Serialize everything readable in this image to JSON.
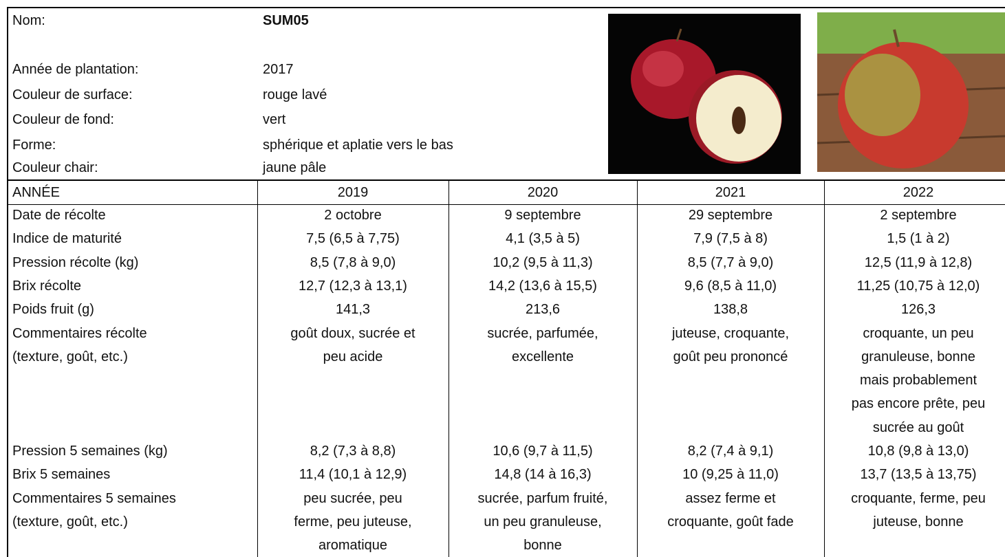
{
  "header": {
    "fields": [
      {
        "label": "Nom:",
        "value": "SUM05"
      },
      {
        "label": "Année de plantation:",
        "value": "2017"
      },
      {
        "label": "Couleur de surface:",
        "value": "rouge lavé"
      },
      {
        "label": "Couleur de fond:",
        "value": "vert"
      },
      {
        "label": "Forme:",
        "value": "sphérique et aplatie vers le bas"
      },
      {
        "label": "Couleur chair:",
        "value": "jaune pâle"
      }
    ]
  },
  "table": {
    "columns": [
      "ANNÉE",
      "2019",
      "2020",
      "2021",
      "2022"
    ],
    "rows": [
      {
        "label": [
          "Date de récolte"
        ],
        "cells": [
          [
            "2 octobre"
          ],
          [
            "9 septembre"
          ],
          [
            "29 septembre"
          ],
          [
            "2 septembre"
          ]
        ]
      },
      {
        "label": [
          "Indice de maturité"
        ],
        "cells": [
          [
            "7,5 (6,5 à 7,75)"
          ],
          [
            "4,1 (3,5 à 5)"
          ],
          [
            "7,9 (7,5 à 8)"
          ],
          [
            "1,5 (1 à 2)"
          ]
        ]
      },
      {
        "label": [
          "Pression récolte (kg)"
        ],
        "cells": [
          [
            "8,5 (7,8 à 9,0)"
          ],
          [
            "10,2 (9,5 à 11,3)"
          ],
          [
            "8,5 (7,7 à 9,0)"
          ],
          [
            "12,5 (11,9 à 12,8)"
          ]
        ]
      },
      {
        "label": [
          "Brix récolte"
        ],
        "cells": [
          [
            "12,7 (12,3 à 13,1)"
          ],
          [
            "14,2 (13,6 à 15,5)"
          ],
          [
            "9,6 (8,5 à 11,0)"
          ],
          [
            "11,25 (10,75 à 12,0)"
          ]
        ]
      },
      {
        "label": [
          "Poids fruit (g)"
        ],
        "cells": [
          [
            "141,3"
          ],
          [
            "213,6"
          ],
          [
            "138,8"
          ],
          [
            "126,3"
          ]
        ]
      },
      {
        "label": [
          "Commentaires récolte",
          "(texture, goût, etc.)"
        ],
        "cells": [
          [
            "goût doux, sucrée et",
            "peu acide"
          ],
          [
            "sucrée, parfumée,",
            "excellente"
          ],
          [
            "juteuse, croquante,",
            "goût peu prononcé"
          ],
          [
            "croquante, un peu",
            "granuleuse, bonne",
            "mais probablement",
            "pas encore prête, peu",
            "sucrée au goût"
          ]
        ]
      },
      {
        "label": [
          "Pression 5 semaines (kg)"
        ],
        "cells": [
          [
            "8,2 (7,3 à 8,8)"
          ],
          [
            "10,6 (9,7 à 11,5)"
          ],
          [
            "8,2 (7,4 à 9,1)"
          ],
          [
            "10,8 (9,8 à 13,0)"
          ]
        ]
      },
      {
        "label": [
          "Brix 5 semaines"
        ],
        "cells": [
          [
            "11,4 (10,1 à 12,9)"
          ],
          [
            "14,8 (14 à 16,3)"
          ],
          [
            "10 (9,25 à 11,0)"
          ],
          [
            "13,7 (13,5 à 13,75)"
          ]
        ]
      },
      {
        "label": [
          "Commentaires 5 semaines",
          "(texture, goût, etc.)"
        ],
        "cells": [
          [
            "peu sucrée, peu",
            "ferme, peu juteuse,",
            "aromatique"
          ],
          [
            "sucrée, parfum fruité,",
            "un peu granuleuse,",
            "bonne"
          ],
          [
            "assez ferme et",
            "croquante, goût fade"
          ],
          [
            "croquante, ferme, peu",
            "juteuse, bonne"
          ]
        ]
      }
    ]
  }
}
